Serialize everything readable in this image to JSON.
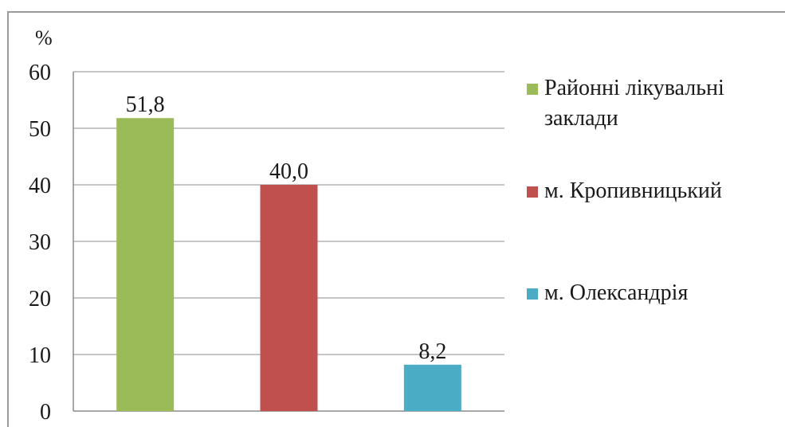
{
  "chart_data": {
    "type": "bar",
    "ylabel": "%",
    "ylim": [
      0,
      60
    ],
    "yticks": [
      0,
      10,
      20,
      30,
      40,
      50,
      60
    ],
    "grid": true,
    "legend_position": "right",
    "series": [
      {
        "name": "Районні лікувальні заклади",
        "value": 51.8,
        "label": "51,8",
        "color": "#9bbb59",
        "legend_lines": [
          "Районні лікувальні",
          "заклади"
        ]
      },
      {
        "name": "м. Кропивницький",
        "value": 40.0,
        "label": "40,0",
        "color": "#c0504d",
        "legend_lines": [
          "м. Кропивницький"
        ]
      },
      {
        "name": "м. Олександрія",
        "value": 8.2,
        "label": "8,2",
        "color": "#4bacc6",
        "legend_lines": [
          "м. Олександрія"
        ]
      }
    ]
  }
}
